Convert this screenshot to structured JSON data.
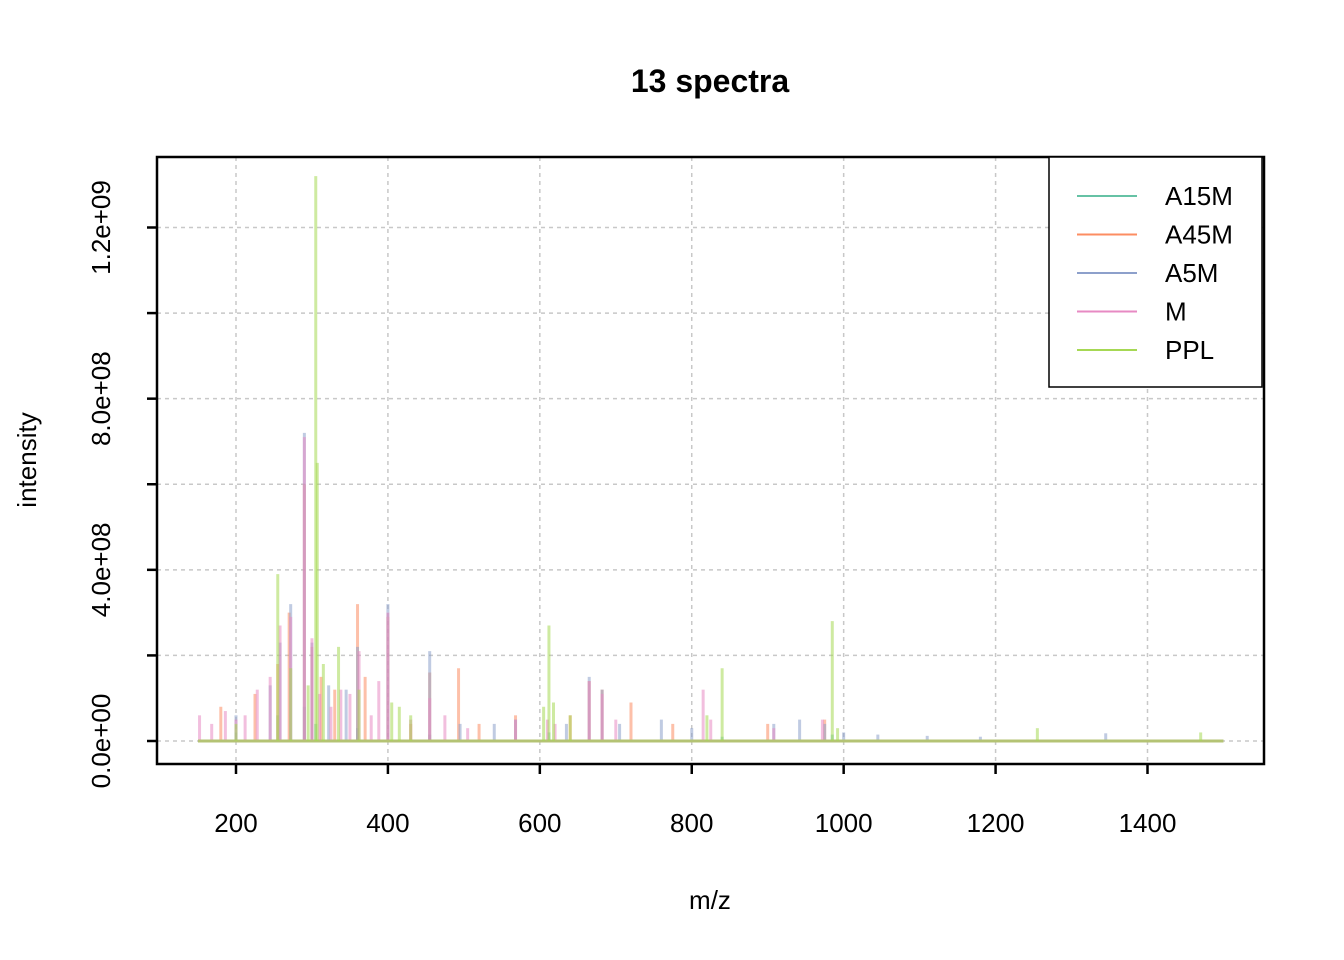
{
  "chart_data": {
    "type": "line",
    "title": "13 spectra",
    "xlabel": "m/z",
    "ylabel": "intensity",
    "xlim": [
      150,
      1500
    ],
    "ylim": [
      0,
      1350000000
    ],
    "x_ticks": [
      {
        "value": 200,
        "label": "200"
      },
      {
        "value": 400,
        "label": "400"
      },
      {
        "value": 600,
        "label": "600"
      },
      {
        "value": 800,
        "label": "800"
      },
      {
        "value": 1000,
        "label": "1000"
      },
      {
        "value": 1200,
        "label": "1200"
      },
      {
        "value": 1400,
        "label": "1400"
      }
    ],
    "y_ticks": [
      {
        "value": 0,
        "label": "0.0e+00"
      },
      {
        "value": 400000000,
        "label": "4.0e+08"
      },
      {
        "value": 800000000,
        "label": "8.0e+08"
      },
      {
        "value": 1200000000,
        "label": "1.2e+09"
      }
    ],
    "y_grid": [
      0,
      200000000,
      400000000,
      600000000,
      800000000,
      1000000000,
      1200000000
    ],
    "grid": true,
    "legend_position": "top-right",
    "series": [
      {
        "name": "A15M",
        "color": "#66C2A5",
        "points": [
          [
            200,
            20000000
          ],
          [
            255,
            60000000
          ],
          [
            290,
            80000000
          ],
          [
            305,
            40000000
          ],
          [
            360,
            30000000
          ],
          [
            455,
            15000000
          ],
          [
            612,
            20000000
          ],
          [
            840,
            10000000
          ],
          [
            985,
            15000000
          ]
        ]
      },
      {
        "name": "A45M",
        "color": "#FC8D62",
        "points": [
          [
            180,
            80000000
          ],
          [
            225,
            110000000
          ],
          [
            255,
            180000000
          ],
          [
            270,
            300000000
          ],
          [
            290,
            600000000
          ],
          [
            300,
            220000000
          ],
          [
            312,
            150000000
          ],
          [
            330,
            120000000
          ],
          [
            360,
            320000000
          ],
          [
            370,
            150000000
          ],
          [
            400,
            290000000
          ],
          [
            430,
            40000000
          ],
          [
            455,
            160000000
          ],
          [
            493,
            170000000
          ],
          [
            520,
            40000000
          ],
          [
            568,
            60000000
          ],
          [
            640,
            60000000
          ],
          [
            665,
            140000000
          ],
          [
            682,
            120000000
          ],
          [
            720,
            90000000
          ],
          [
            775,
            40000000
          ],
          [
            900,
            40000000
          ],
          [
            975,
            50000000
          ]
        ]
      },
      {
        "name": "A5M",
        "color": "#8DA0CB",
        "points": [
          [
            200,
            60000000
          ],
          [
            245,
            130000000
          ],
          [
            258,
            230000000
          ],
          [
            272,
            320000000
          ],
          [
            290,
            720000000
          ],
          [
            300,
            230000000
          ],
          [
            322,
            130000000
          ],
          [
            345,
            120000000
          ],
          [
            360,
            220000000
          ],
          [
            400,
            320000000
          ],
          [
            455,
            210000000
          ],
          [
            495,
            40000000
          ],
          [
            540,
            40000000
          ],
          [
            568,
            50000000
          ],
          [
            635,
            40000000
          ],
          [
            665,
            150000000
          ],
          [
            682,
            120000000
          ],
          [
            705,
            40000000
          ],
          [
            760,
            50000000
          ],
          [
            800,
            30000000
          ],
          [
            908,
            40000000
          ],
          [
            942,
            50000000
          ],
          [
            975,
            40000000
          ],
          [
            1000,
            20000000
          ],
          [
            1045,
            15000000
          ],
          [
            1110,
            12000000
          ],
          [
            1180,
            10000000
          ],
          [
            1345,
            18000000
          ]
        ]
      },
      {
        "name": "M",
        "color": "#E78AC3",
        "points": [
          [
            152,
            60000000
          ],
          [
            168,
            40000000
          ],
          [
            186,
            70000000
          ],
          [
            200,
            50000000
          ],
          [
            212,
            60000000
          ],
          [
            228,
            120000000
          ],
          [
            245,
            150000000
          ],
          [
            258,
            270000000
          ],
          [
            272,
            290000000
          ],
          [
            290,
            710000000
          ],
          [
            300,
            240000000
          ],
          [
            310,
            110000000
          ],
          [
            325,
            80000000
          ],
          [
            338,
            120000000
          ],
          [
            350,
            110000000
          ],
          [
            362,
            210000000
          ],
          [
            378,
            60000000
          ],
          [
            388,
            140000000
          ],
          [
            400,
            300000000
          ],
          [
            430,
            50000000
          ],
          [
            455,
            100000000
          ],
          [
            475,
            60000000
          ],
          [
            505,
            30000000
          ],
          [
            568,
            50000000
          ],
          [
            610,
            50000000
          ],
          [
            620,
            40000000
          ],
          [
            665,
            140000000
          ],
          [
            682,
            110000000
          ],
          [
            700,
            50000000
          ],
          [
            815,
            120000000
          ],
          [
            825,
            50000000
          ],
          [
            908,
            30000000
          ],
          [
            972,
            50000000
          ]
        ]
      },
      {
        "name": "PPL",
        "color": "#A6D854",
        "points": [
          [
            200,
            40000000
          ],
          [
            255,
            390000000
          ],
          [
            272,
            170000000
          ],
          [
            295,
            130000000
          ],
          [
            305,
            1320000000
          ],
          [
            307,
            650000000
          ],
          [
            315,
            180000000
          ],
          [
            335,
            220000000
          ],
          [
            362,
            120000000
          ],
          [
            405,
            90000000
          ],
          [
            415,
            80000000
          ],
          [
            430,
            60000000
          ],
          [
            605,
            80000000
          ],
          [
            612,
            270000000
          ],
          [
            618,
            90000000
          ],
          [
            640,
            60000000
          ],
          [
            820,
            60000000
          ],
          [
            840,
            170000000
          ],
          [
            985,
            280000000
          ],
          [
            992,
            30000000
          ],
          [
            1255,
            30000000
          ],
          [
            1470,
            20000000
          ]
        ]
      }
    ]
  }
}
